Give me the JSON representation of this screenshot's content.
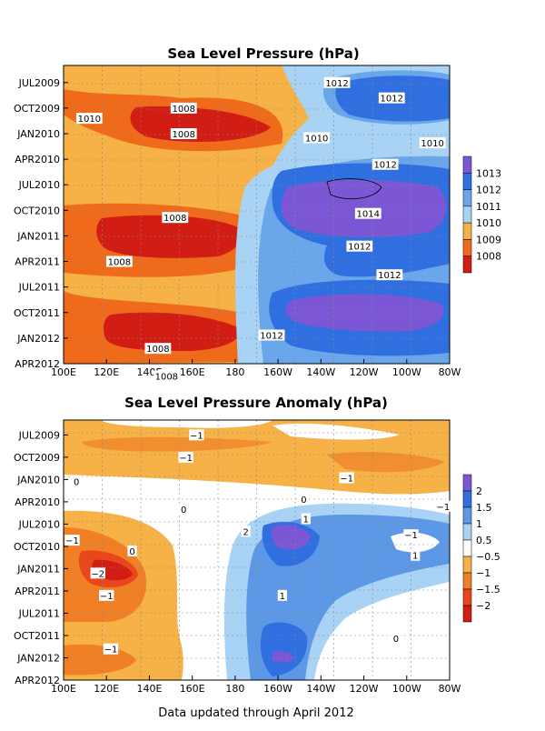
{
  "footer": "Data updated through April 2012",
  "chart_data": [
    {
      "type": "heatmap",
      "title": "Sea Level Pressure (hPa)",
      "x_ticks": [
        "100E",
        "120E",
        "140E",
        "160E",
        "180",
        "160W",
        "140W",
        "120W",
        "100W",
        "80W"
      ],
      "y_ticks": [
        "JUL2009",
        "OCT2009",
        "JAN2010",
        "APR2010",
        "JUL2010",
        "OCT2010",
        "JAN2011",
        "APR2011",
        "JUL2011",
        "OCT2011",
        "JAN2012",
        "APR2012"
      ],
      "colorbar": {
        "levels": [
          "1013",
          "1012",
          "1011",
          "1010",
          "1009",
          "1008"
        ],
        "colors": [
          "#7b57d6",
          "#2f6fe0",
          "#6aa6ea",
          "#a9d3f5",
          "#f6b246",
          "#f06a1c",
          "#d21d14"
        ]
      },
      "contour_labels": [
        {
          "text": "1012",
          "x": 227.5,
          "y": 2009.5
        },
        {
          "text": "1012",
          "x": 253,
          "y": 2009.65
        },
        {
          "text": "1010",
          "x": 112,
          "y": 2009.85
        },
        {
          "text": "1008",
          "x": 156,
          "y": 2009.75
        },
        {
          "text": "1008",
          "x": 156,
          "y": 2010.0
        },
        {
          "text": "1010",
          "x": 218,
          "y": 2010.04
        },
        {
          "text": "1010",
          "x": 272,
          "y": 2010.09
        },
        {
          "text": "1012",
          "x": 250,
          "y": 2010.3
        },
        {
          "text": "1014",
          "x": 242,
          "y": 2010.78
        },
        {
          "text": "1008",
          "x": 152,
          "y": 2010.82
        },
        {
          "text": "1008",
          "x": 126,
          "y": 2011.25
        },
        {
          "text": "1012",
          "x": 238,
          "y": 2011.1
        },
        {
          "text": "1012",
          "x": 252,
          "y": 2011.38
        },
        {
          "text": "1012",
          "x": 197,
          "y": 2011.97
        },
        {
          "text": "1008",
          "x": 144,
          "y": 2012.1
        },
        {
          "text": "1008",
          "x": 148,
          "y": 2012.37
        }
      ]
    },
    {
      "type": "heatmap",
      "title": "Sea Level Pressure Anomaly (hPa)",
      "x_ticks": [
        "100E",
        "120E",
        "140E",
        "160E",
        "180",
        "160W",
        "140W",
        "120W",
        "100W",
        "80W"
      ],
      "y_ticks": [
        "JUL2009",
        "OCT2009",
        "JAN2010",
        "APR2010",
        "JUL2010",
        "OCT2010",
        "JAN2011",
        "APR2011",
        "JUL2011",
        "OCT2011",
        "JAN2012",
        "APR2012"
      ],
      "colorbar": {
        "levels": [
          "2",
          "1.5",
          "1",
          "0.5",
          "−0.5",
          "−1",
          "−1.5",
          "−2"
        ],
        "colors": [
          "#7b57d6",
          "#2f6fe0",
          "#5c98e6",
          "#a9d3f5",
          "#ffffff",
          "#f6b246",
          "#f07f25",
          "#e9461b",
          "#d21d14"
        ]
      },
      "contour_labels": [
        {
          "text": "−1",
          "x": 162,
          "y": 2009.5
        },
        {
          "text": "−1",
          "x": 157,
          "y": 2009.75
        },
        {
          "text": "0",
          "x": 106,
          "y": 2010.02
        },
        {
          "text": "−1",
          "x": 232,
          "y": 2009.98
        },
        {
          "text": "0",
          "x": 212,
          "y": 2010.22
        },
        {
          "text": "−1",
          "x": 277,
          "y": 2010.3
        },
        {
          "text": "0",
          "x": 156,
          "y": 2010.33
        },
        {
          "text": "1",
          "x": 213,
          "y": 2010.44
        },
        {
          "text": "2",
          "x": 185,
          "y": 2010.58
        },
        {
          "text": "−1",
          "x": 262,
          "y": 2010.62
        },
        {
          "text": "−1",
          "x": 104,
          "y": 2010.68
        },
        {
          "text": "0",
          "x": 132,
          "y": 2010.8
        },
        {
          "text": "1",
          "x": 264,
          "y": 2010.85
        },
        {
          "text": "−2",
          "x": 116,
          "y": 2011.05
        },
        {
          "text": "−1",
          "x": 120,
          "y": 2011.3
        },
        {
          "text": "1",
          "x": 202,
          "y": 2011.3
        },
        {
          "text": "0",
          "x": 255,
          "y": 2011.78
        },
        {
          "text": "−1",
          "x": 122,
          "y": 2011.9
        }
      ]
    }
  ]
}
